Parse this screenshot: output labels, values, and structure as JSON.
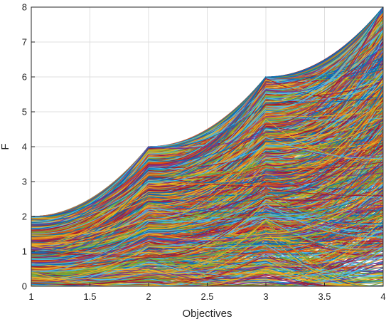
{
  "chart_data": {
    "type": "line",
    "subtype": "parallel-coordinates",
    "title": "",
    "xlabel": "Objectives",
    "ylabel": "F",
    "xlim": [
      1,
      4
    ],
    "ylim": [
      0,
      8
    ],
    "xticks": [
      "1",
      "1.5",
      "2",
      "2.5",
      "3",
      "3.5",
      "4"
    ],
    "yticks": [
      "0",
      "1",
      "2",
      "3",
      "4",
      "5",
      "6",
      "7",
      "8"
    ],
    "grid": true,
    "legend": "none",
    "x": [
      1,
      2,
      3,
      4
    ],
    "envelope_upper": [
      2,
      4,
      6,
      8
    ],
    "envelope_lower": [
      0,
      0,
      0,
      0
    ],
    "series_count": "many",
    "palette": [
      "#0072BD",
      "#D95319",
      "#EDB120",
      "#7E2F8E",
      "#77AC30",
      "#4DBEEE",
      "#A2142F"
    ]
  }
}
